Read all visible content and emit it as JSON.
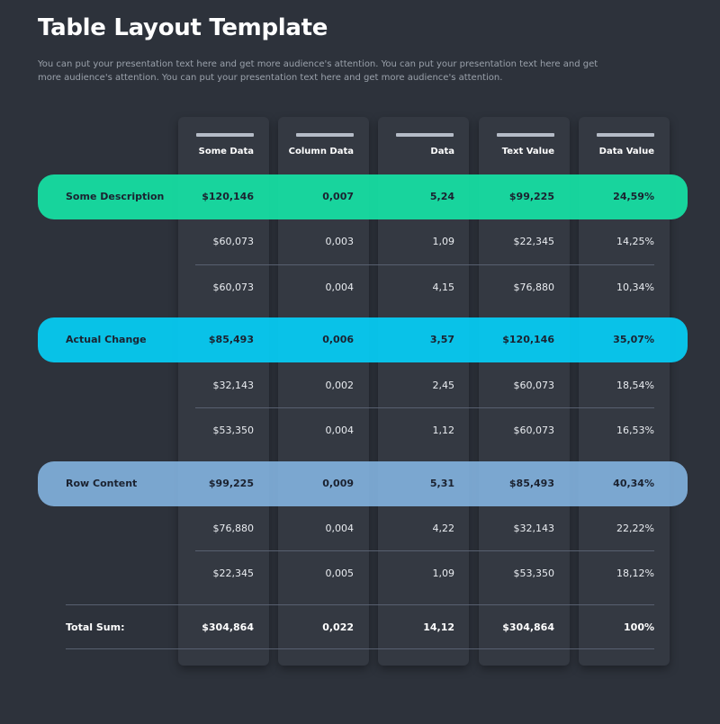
{
  "header": {
    "title": "Table Layout Template",
    "subtitle": "You can put your presentation text here and get more audience's attention. You can put your presentation text here and get more audience's attention. You can put your presentation text here and get more audience's attention."
  },
  "colors": {
    "background": "#2d323b",
    "column": "#343942",
    "band_green": "#16e2a5",
    "band_cyan": "#05cef6",
    "band_blue": "#85b6e4"
  },
  "table": {
    "columns": [
      "Some Data",
      "Column Data",
      "Data",
      "Text Value",
      "Data Value"
    ],
    "rows": [
      {
        "label": "Some Description",
        "values": [
          "$120,146",
          "0,007",
          "5,24",
          "$99,225",
          "24,59%"
        ],
        "highlight": true
      },
      {
        "label": "",
        "values": [
          "$60,073",
          "0,003",
          "1,09",
          "$22,345",
          "14,25%"
        ],
        "highlight": false
      },
      {
        "label": "",
        "values": [
          "$60,073",
          "0,004",
          "4,15",
          "$76,880",
          "10,34%"
        ],
        "highlight": false
      },
      {
        "label": "Actual Change",
        "values": [
          "$85,493",
          "0,006",
          "3,57",
          "$120,146",
          "35,07%"
        ],
        "highlight": true
      },
      {
        "label": "",
        "values": [
          "$32,143",
          "0,002",
          "2,45",
          "$60,073",
          "18,54%"
        ],
        "highlight": false
      },
      {
        "label": "",
        "values": [
          "$53,350",
          "0,004",
          "1,12",
          "$60,073",
          "16,53%"
        ],
        "highlight": false
      },
      {
        "label": "Row Content",
        "values": [
          "$99,225",
          "0,009",
          "5,31",
          "$85,493",
          "40,34%"
        ],
        "highlight": true
      },
      {
        "label": "",
        "values": [
          "$76,880",
          "0,004",
          "4,22",
          "$32,143",
          "22,22%"
        ],
        "highlight": false
      },
      {
        "label": "",
        "values": [
          "$22,345",
          "0,005",
          "1,09",
          "$53,350",
          "18,12%"
        ],
        "highlight": false
      }
    ],
    "total": {
      "label": "Total Sum:",
      "values": [
        "$304,864",
        "0,022",
        "14,12",
        "$304,864",
        "100%"
      ]
    }
  }
}
